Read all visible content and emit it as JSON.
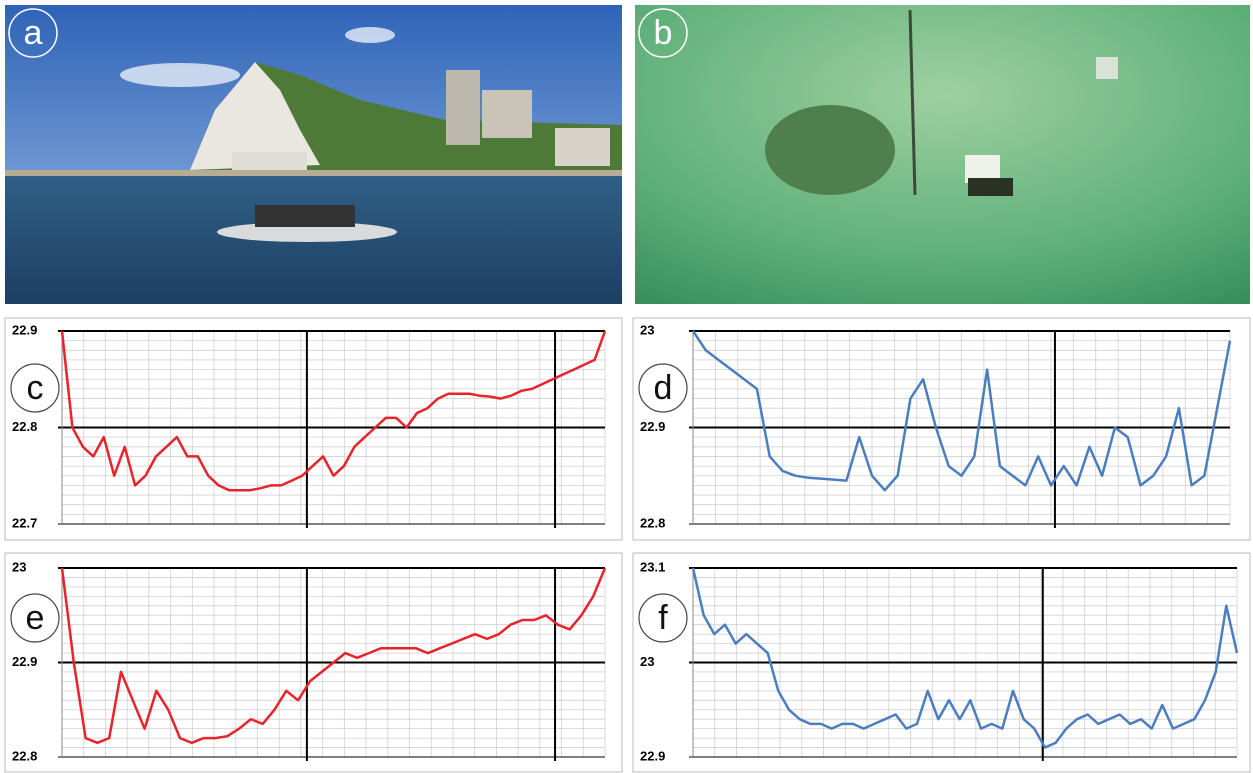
{
  "photos": [
    {
      "label": "a"
    },
    {
      "label": "b"
    }
  ],
  "chart_data": [
    {
      "type": "line",
      "panel_label": "c",
      "color": "#e8232a",
      "ylim": [
        22.7,
        22.9
      ],
      "yticks": [
        22.7,
        22.8,
        22.9
      ],
      "grid": true,
      "values": [
        22.9,
        22.8,
        22.78,
        22.77,
        22.79,
        22.75,
        22.78,
        22.74,
        22.75,
        22.77,
        22.78,
        22.79,
        22.77,
        22.77,
        22.75,
        22.74,
        22.735,
        22.735,
        22.735,
        22.737,
        22.74,
        22.74,
        22.745,
        22.75,
        22.76,
        22.77,
        22.75,
        22.76,
        22.78,
        22.79,
        22.8,
        22.81,
        22.81,
        22.8,
        22.815,
        22.82,
        22.83,
        22.835,
        22.835,
        22.835,
        22.833,
        22.832,
        22.83,
        22.833,
        22.838,
        22.84,
        22.845,
        22.85,
        22.855,
        22.86,
        22.865,
        22.87,
        22.9
      ]
    },
    {
      "type": "line",
      "panel_label": "d",
      "color": "#4a7ebf",
      "ylim": [
        22.8,
        23
      ],
      "yticks": [
        22.8,
        22.9,
        23
      ],
      "grid": true,
      "values": [
        23,
        22.98,
        22.97,
        22.96,
        22.95,
        22.94,
        22.87,
        22.855,
        22.85,
        22.848,
        22.847,
        22.846,
        22.845,
        22.89,
        22.85,
        22.835,
        22.85,
        22.93,
        22.95,
        22.9,
        22.86,
        22.85,
        22.87,
        22.96,
        22.86,
        22.85,
        22.84,
        22.87,
        22.84,
        22.86,
        22.84,
        22.88,
        22.85,
        22.9,
        22.89,
        22.84,
        22.85,
        22.87,
        22.92,
        22.84,
        22.85,
        22.92,
        22.99
      ]
    },
    {
      "type": "line",
      "panel_label": "e",
      "color": "#e8232a",
      "ylim": [
        22.8,
        23
      ],
      "yticks": [
        22.8,
        22.9,
        23
      ],
      "grid": true,
      "values": [
        23,
        22.9,
        22.82,
        22.815,
        22.82,
        22.89,
        22.86,
        22.83,
        22.87,
        22.85,
        22.82,
        22.815,
        22.82,
        22.82,
        22.822,
        22.83,
        22.84,
        22.835,
        22.85,
        22.87,
        22.86,
        22.88,
        22.89,
        22.9,
        22.91,
        22.905,
        22.91,
        22.915,
        22.915,
        22.915,
        22.915,
        22.91,
        22.915,
        22.92,
        22.925,
        22.93,
        22.925,
        22.93,
        22.94,
        22.945,
        22.945,
        22.95,
        22.94,
        22.935,
        22.95,
        22.97,
        23
      ]
    },
    {
      "type": "line",
      "panel_label": "f",
      "color": "#4a7ebf",
      "ylim": [
        22.9,
        23.1
      ],
      "yticks": [
        22.9,
        23,
        23.1
      ],
      "grid": true,
      "values": [
        23.1,
        23.05,
        23.03,
        23.04,
        23.02,
        23.03,
        23.02,
        23.01,
        22.97,
        22.95,
        22.94,
        22.935,
        22.935,
        22.93,
        22.935,
        22.935,
        22.93,
        22.935,
        22.94,
        22.945,
        22.93,
        22.935,
        22.97,
        22.94,
        22.96,
        22.94,
        22.96,
        22.93,
        22.935,
        22.93,
        22.97,
        22.94,
        22.93,
        22.91,
        22.915,
        22.93,
        22.94,
        22.945,
        22.935,
        22.94,
        22.945,
        22.935,
        22.94,
        22.93,
        22.955,
        22.93,
        22.935,
        22.94,
        22.96,
        22.99,
        23.06,
        23.01
      ]
    }
  ]
}
